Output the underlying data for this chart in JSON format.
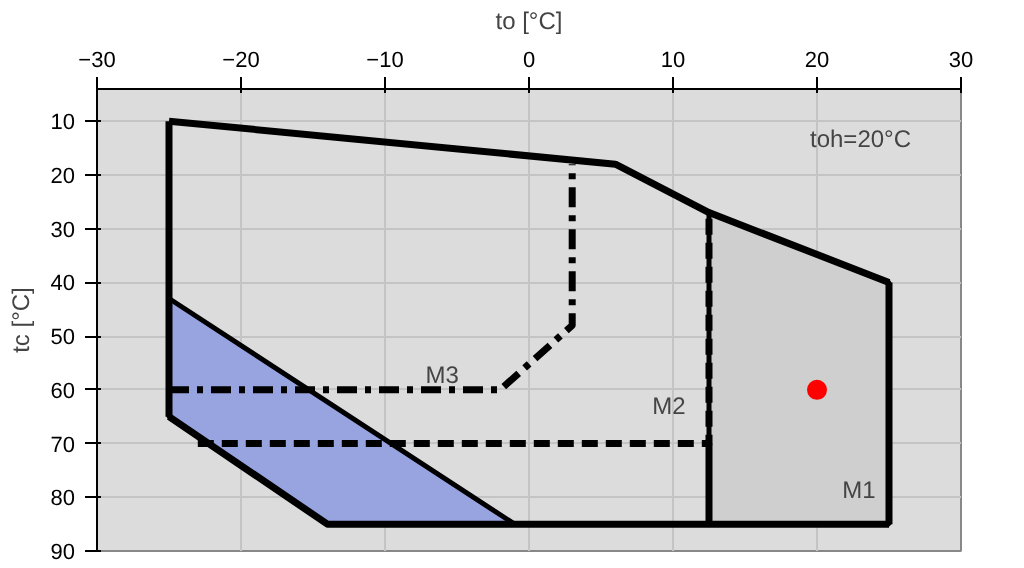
{
  "chart_data": {
    "type": "line",
    "xlabel": "to [°C]",
    "ylabel": "tc [°C]",
    "xlim": [
      -30,
      30
    ],
    "xticks": [
      -30,
      -20,
      -10,
      0,
      10,
      20,
      30
    ],
    "ylim": [
      90,
      4
    ],
    "yticks": [
      10,
      20,
      30,
      40,
      50,
      60,
      70,
      80,
      90
    ],
    "grid": true,
    "legend": false,
    "series": [
      {
        "type": "area",
        "color": "#98a4e0",
        "x": [
          -25,
          -1,
          -14,
          -25
        ],
        "values": [
          43,
          85,
          85,
          65
        ]
      },
      {
        "type": "area",
        "name": "M1",
        "color": "#cfcfcf",
        "x": [
          12.5,
          25,
          25,
          12.5
        ],
        "values": [
          27,
          40,
          85,
          85
        ]
      },
      {
        "name": "M3",
        "color": "#000000",
        "line_style": "dashdot",
        "x": [
          -25,
          -2,
          3,
          3
        ],
        "values": [
          60,
          60,
          48,
          18
        ]
      },
      {
        "color": "#000000",
        "line_style": "solid",
        "x": [
          -25,
          6,
          12.5,
          25
        ],
        "values": [
          10,
          18,
          27,
          40
        ]
      },
      {
        "color": "#000000",
        "line_style": "solid",
        "x": [
          25,
          25
        ],
        "values": [
          40,
          85
        ]
      },
      {
        "color": "#000000",
        "line_style": "solid",
        "x": [
          25,
          -14,
          -25
        ],
        "values": [
          85,
          85,
          65
        ]
      },
      {
        "color": "#000000",
        "line_style": "solid",
        "x": [
          -25,
          -25
        ],
        "values": [
          65,
          10
        ]
      },
      {
        "color": "#000000",
        "line_style": "solid",
        "x": [
          12.5,
          12.5
        ],
        "values": [
          70,
          85
        ]
      },
      {
        "name": "M2",
        "color": "#000000",
        "line_style": "dashed",
        "x": [
          -23,
          12.5,
          12.5
        ],
        "values": [
          70,
          70,
          27
        ]
      },
      {
        "type": "scatter",
        "color": "#ff0000",
        "marker": "circle",
        "x": [
          20
        ],
        "values": [
          60
        ]
      }
    ],
    "annotations": [
      "toh=20°C"
    ]
  }
}
